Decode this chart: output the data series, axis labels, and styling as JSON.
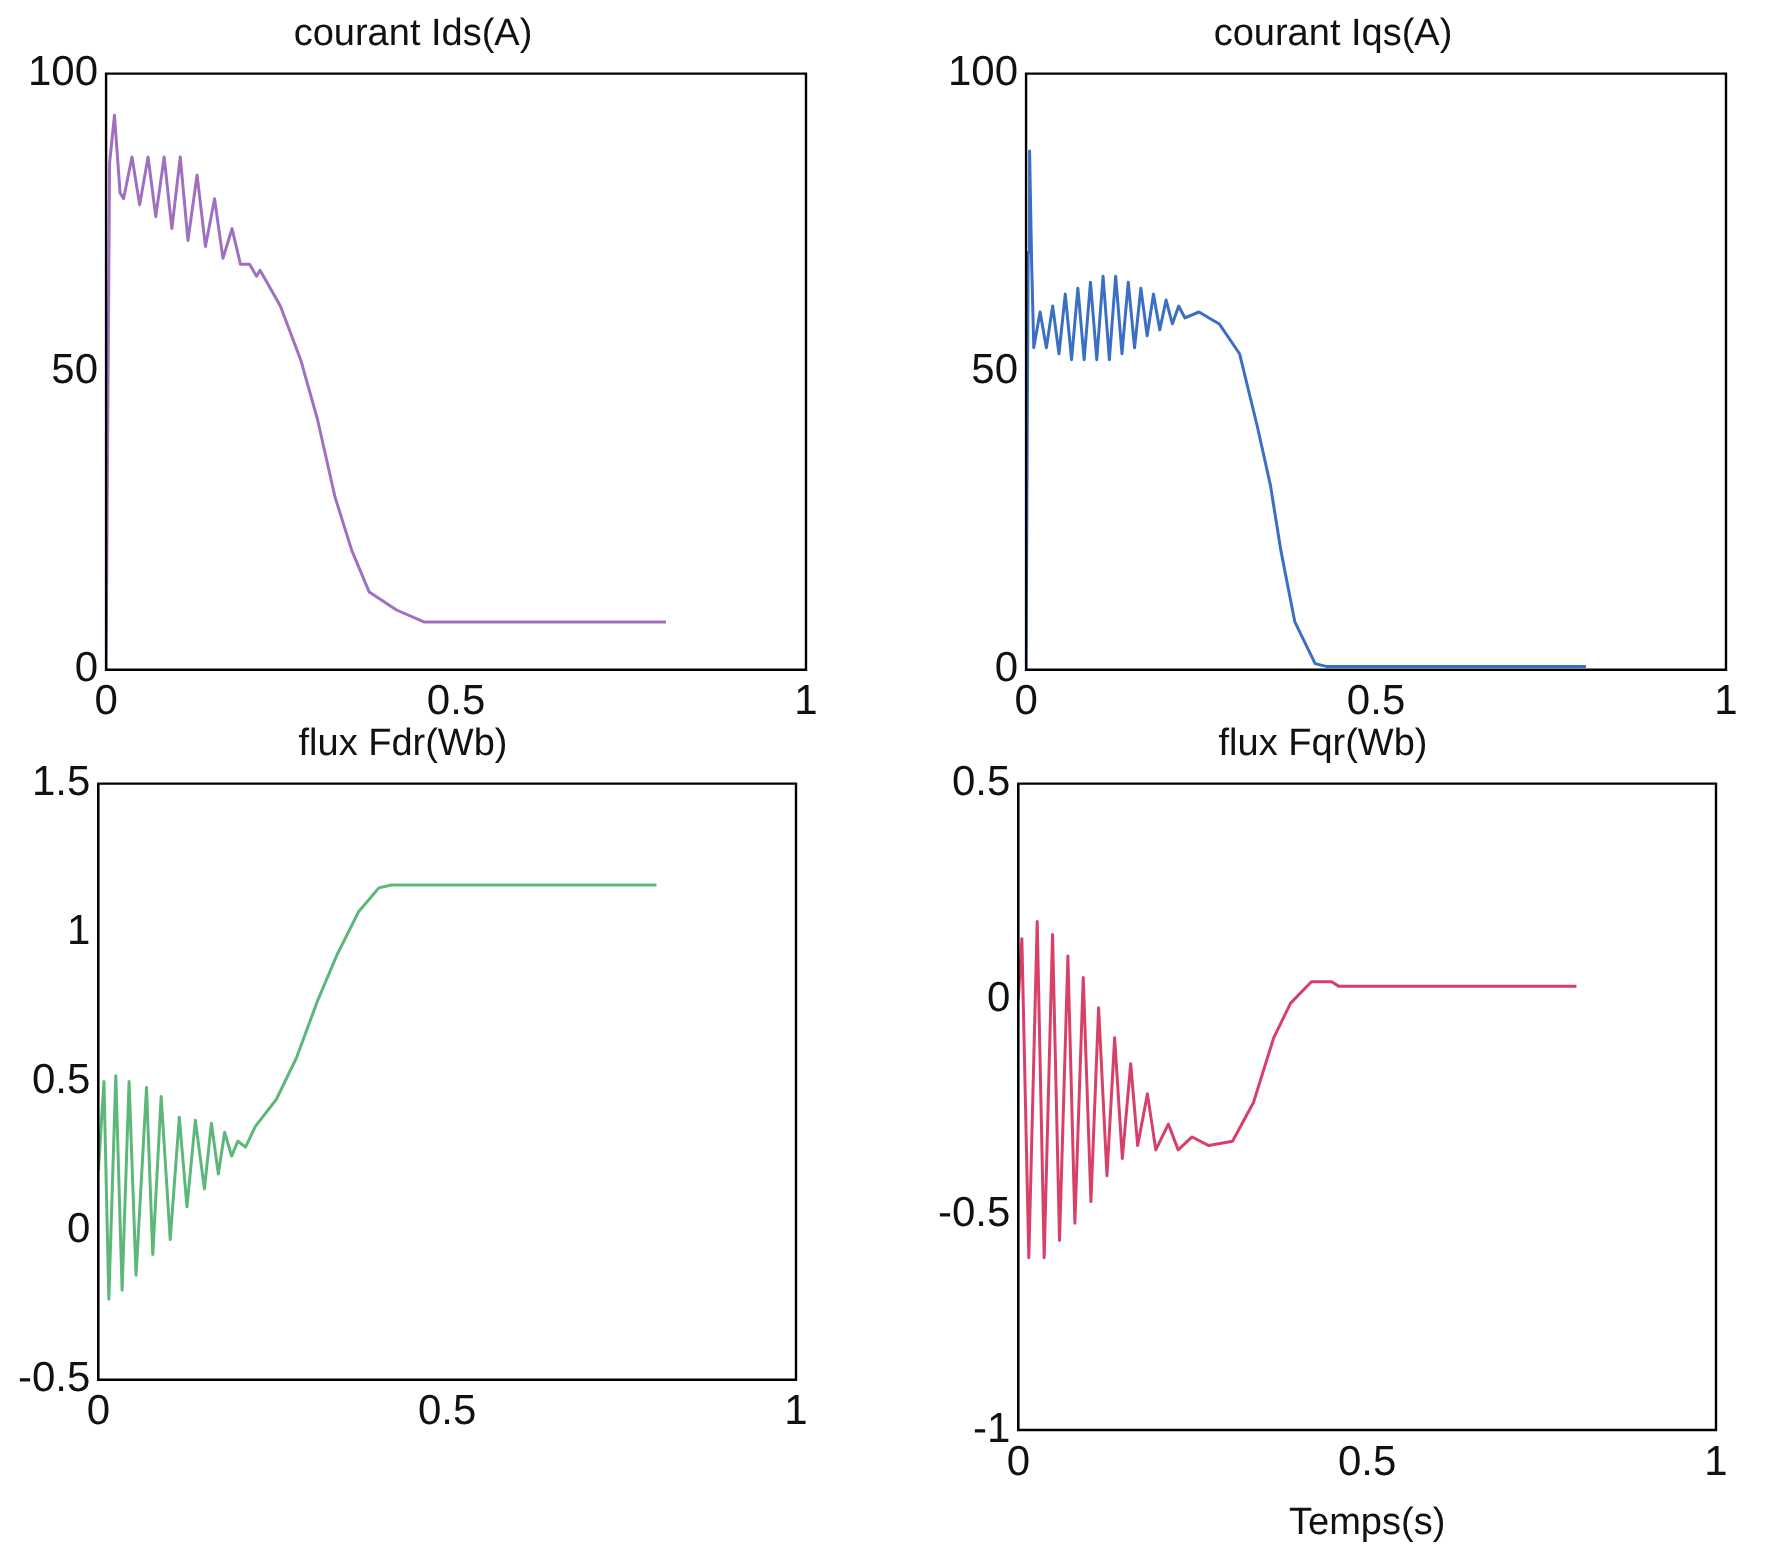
{
  "chart_data": [
    {
      "type": "line",
      "title": "courant Ids(A)",
      "xlim": [
        0,
        1
      ],
      "xticks": [
        0,
        0.5,
        1
      ],
      "ylim": [
        0,
        100
      ],
      "yticks": [
        0,
        50,
        100
      ],
      "series": [
        {
          "color": "#a070c0",
          "x": [
            0,
            0.005,
            0.012,
            0.02,
            0.025,
            0.037,
            0.048,
            0.06,
            0.071,
            0.083,
            0.094,
            0.106,
            0.117,
            0.13,
            0.142,
            0.155,
            0.167,
            0.18,
            0.192,
            0.205,
            0.215,
            0.22,
            0.249,
            0.278,
            0.302,
            0.327,
            0.351,
            0.376,
            0.415,
            0.454,
            0.8
          ],
          "values": [
            0,
            85,
            93,
            80,
            79,
            86,
            78,
            86,
            76,
            86,
            74,
            86,
            72,
            83,
            71,
            79,
            69,
            74,
            68,
            68,
            66,
            67,
            61,
            52,
            42,
            29,
            20,
            13,
            10,
            8,
            8
          ]
        }
      ]
    },
    {
      "type": "line",
      "title": "courant Iqs(A)",
      "xlim": [
        0,
        1
      ],
      "xticks": [
        0,
        0.5,
        1
      ],
      "ylim": [
        0,
        100
      ],
      "yticks": [
        0,
        50,
        100
      ],
      "series": [
        {
          "color": "#3a6fc4",
          "x": [
            0,
            0.003,
            0.005,
            0.008,
            0.011,
            0.02,
            0.029,
            0.038,
            0.047,
            0.056,
            0.065,
            0.074,
            0.083,
            0.092,
            0.101,
            0.11,
            0.119,
            0.128,
            0.137,
            0.146,
            0.155,
            0.164,
            0.173,
            0.182,
            0.191,
            0.2,
            0.209,
            0.218,
            0.227,
            0.247,
            0.276,
            0.305,
            0.33,
            0.349,
            0.364,
            0.384,
            0.413,
            0.43,
            0.8
          ],
          "values": [
            0,
            70,
            87,
            68,
            54,
            60,
            54,
            61,
            53,
            63,
            52,
            64,
            52,
            65,
            52,
            66,
            52,
            66,
            53,
            65,
            54,
            64,
            56,
            63,
            57,
            62,
            58,
            61,
            59,
            60,
            58,
            53,
            41,
            31,
            20,
            8,
            1,
            0.5,
            0.5
          ]
        }
      ]
    },
    {
      "type": "line",
      "title": "flux Fdr(Wb)",
      "xlim": [
        0,
        1
      ],
      "xticks": [
        0,
        0.5,
        1
      ],
      "ylim": [
        -0.5,
        1.5
      ],
      "yticks": [
        -0.5,
        0,
        0.5,
        1,
        1.5
      ],
      "series": [
        {
          "color": "#5cb87a",
          "x": [
            0,
            0.008,
            0.015,
            0.025,
            0.034,
            0.044,
            0.054,
            0.069,
            0.078,
            0.09,
            0.103,
            0.116,
            0.127,
            0.139,
            0.152,
            0.162,
            0.172,
            0.181,
            0.191,
            0.2,
            0.211,
            0.225,
            0.255,
            0.284,
            0.314,
            0.343,
            0.373,
            0.402,
            0.42,
            0.8
          ],
          "values": [
            0.2,
            0.5,
            -0.23,
            0.52,
            -0.2,
            0.5,
            -0.15,
            0.48,
            -0.08,
            0.45,
            -0.03,
            0.38,
            0.08,
            0.37,
            0.14,
            0.36,
            0.19,
            0.33,
            0.25,
            0.3,
            0.28,
            0.35,
            0.44,
            0.58,
            0.77,
            0.93,
            1.07,
            1.15,
            1.16,
            1.16
          ]
        }
      ]
    },
    {
      "type": "line",
      "title": "flux Fqr(Wb)",
      "xlabel": "Temps(s)",
      "xlim": [
        0,
        1
      ],
      "xticks": [
        0,
        0.5,
        1
      ],
      "ylim": [
        -1,
        0.5
      ],
      "yticks": [
        -1,
        -0.5,
        0,
        0.5
      ],
      "series": [
        {
          "color": "#d8406a",
          "x": [
            0,
            0.005,
            0.015,
            0.027,
            0.037,
            0.049,
            0.059,
            0.071,
            0.081,
            0.093,
            0.104,
            0.115,
            0.127,
            0.138,
            0.149,
            0.161,
            0.171,
            0.185,
            0.197,
            0.215,
            0.229,
            0.249,
            0.273,
            0.307,
            0.337,
            0.366,
            0.39,
            0.42,
            0.449,
            0.459,
            0.8
          ],
          "values": [
            0,
            0.14,
            -0.6,
            0.18,
            -0.6,
            0.15,
            -0.56,
            0.1,
            -0.52,
            0.05,
            -0.47,
            -0.02,
            -0.41,
            -0.09,
            -0.37,
            -0.15,
            -0.34,
            -0.22,
            -0.35,
            -0.29,
            -0.35,
            -0.32,
            -0.34,
            -0.33,
            -0.24,
            -0.09,
            -0.01,
            0.04,
            0.04,
            0.03,
            0.03
          ]
        }
      ]
    }
  ]
}
